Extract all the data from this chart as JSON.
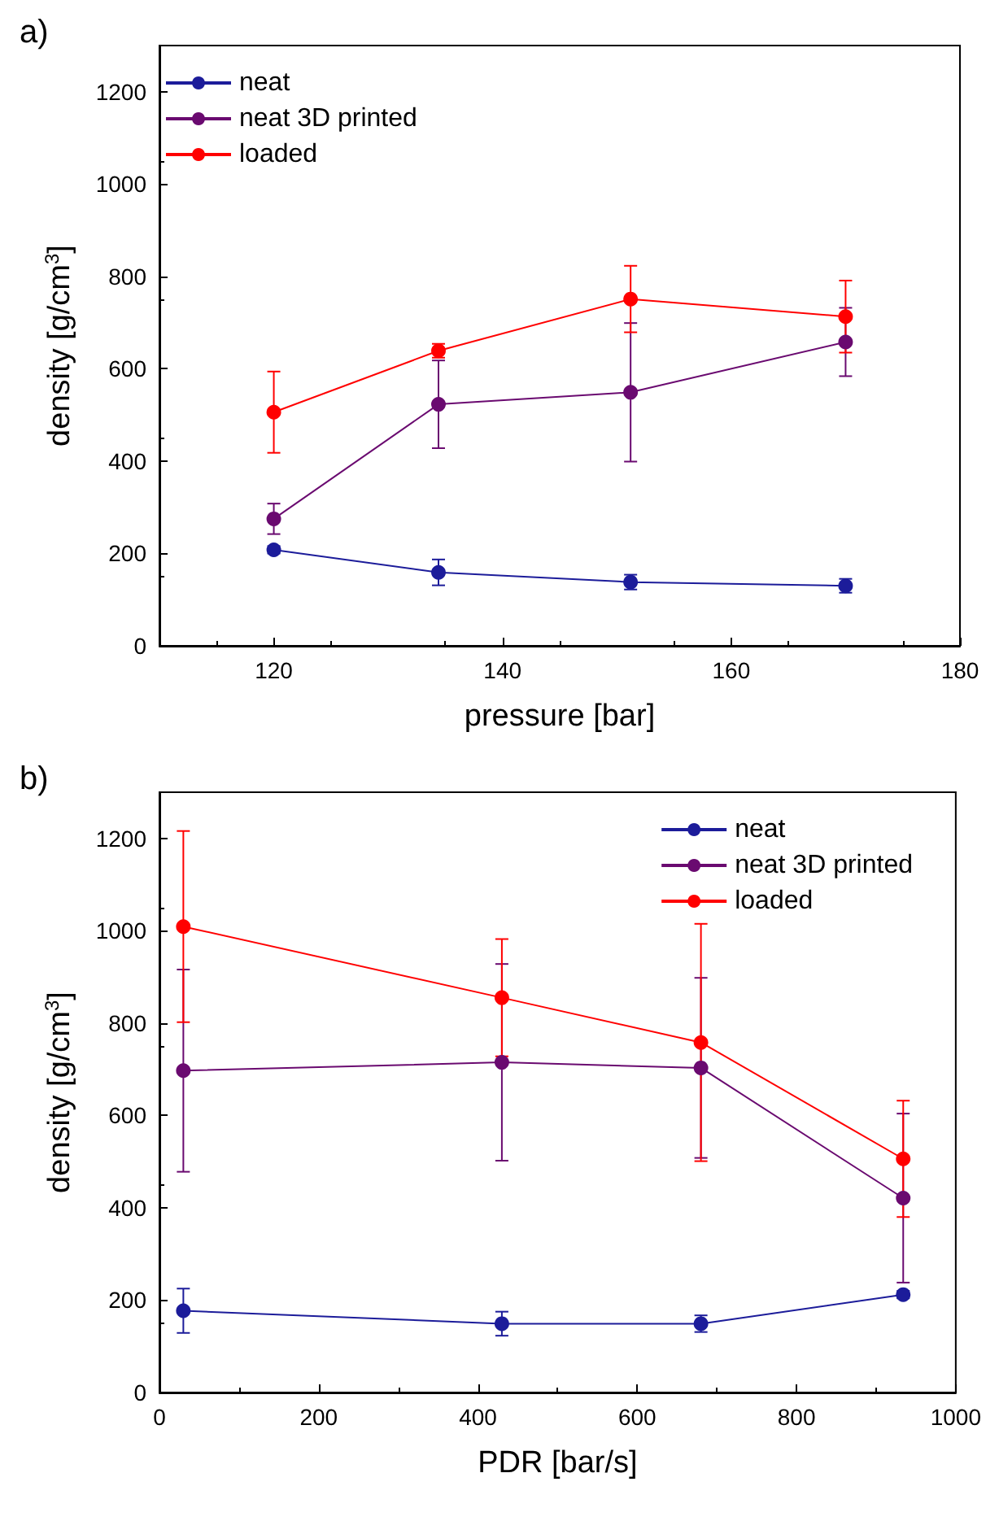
{
  "chart_data": [
    {
      "type": "line",
      "annotations": [
        "a)"
      ],
      "xlabel": "pressure [bar]",
      "ylabel": "density [g/cm$^{3}$]",
      "x": [
        120,
        134.4,
        151.2,
        170
      ],
      "xlim": [
        110,
        180
      ],
      "xticks": [
        120,
        140,
        160,
        180
      ],
      "ylim": [
        0,
        1300
      ],
      "yticks": [
        0,
        200,
        400,
        600,
        800,
        1000,
        1200
      ],
      "grid": false,
      "legend": "top left",
      "marker": "circle",
      "line_style": "solid",
      "series": [
        {
          "name": "neat",
          "color": "#1c1c9a",
          "values": [
            208,
            159,
            138,
            130
          ],
          "errors": [
            8,
            28,
            16,
            15
          ]
        },
        {
          "name": "neat 3D printed",
          "color": "#6a0a70",
          "values": [
            275,
            523,
            549,
            658
          ],
          "errors": [
            33,
            95,
            150,
            74
          ]
        },
        {
          "name": "loaded",
          "color": "#ff0000",
          "values": [
            506,
            639,
            751,
            713
          ],
          "errors": [
            88,
            15,
            72,
            78
          ]
        }
      ]
    },
    {
      "type": "line",
      "annotations": [
        "b)"
      ],
      "xlabel": "PDR [bar/s]",
      "ylabel": "density [g/cm$^{3}$]",
      "x": [
        30,
        430,
        680,
        934
      ],
      "xlim": [
        0,
        1000
      ],
      "xticks": [
        0,
        200,
        400,
        600,
        800,
        1000
      ],
      "ylim": [
        0,
        1300
      ],
      "yticks": [
        0,
        200,
        400,
        600,
        800,
        1000,
        1200
      ],
      "grid": false,
      "legend": "top right",
      "marker": "circle",
      "line_style": "solid",
      "series": [
        {
          "name": "neat",
          "color": "#1c1c9a",
          "values": [
            177,
            149,
            149,
            212
          ],
          "errors": [
            48,
            26,
            18,
            8
          ]
        },
        {
          "name": "neat 3D printed",
          "color": "#6a0a70",
          "values": [
            697,
            715,
            703,
            421
          ],
          "errors": [
            219,
            213,
            195,
            183
          ]
        },
        {
          "name": "loaded",
          "color": "#ff0000",
          "values": [
            1009,
            855,
            758,
            506
          ],
          "errors": [
            207,
            127,
            257,
            126
          ]
        }
      ]
    }
  ]
}
